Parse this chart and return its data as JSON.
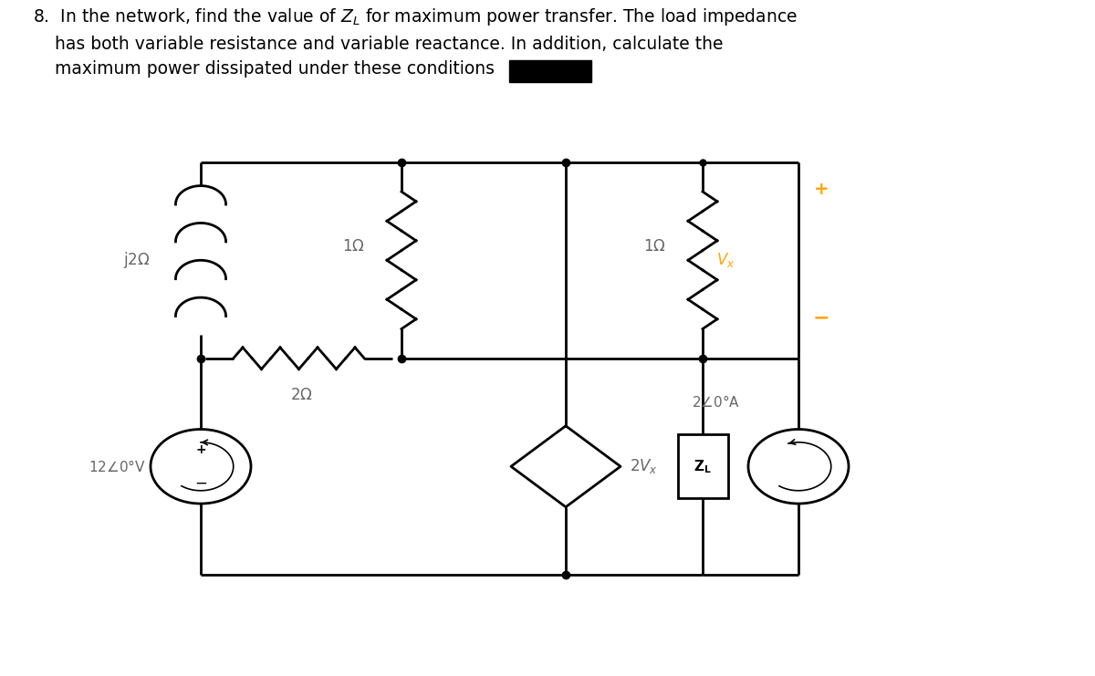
{
  "bg_color": "#ffffff",
  "line_color": "#000000",
  "label_color": "#666666",
  "vx_color": "#FFA500",
  "lw": 2.0,
  "ytop": 0.76,
  "ymid": 0.47,
  "ybot": 0.15,
  "xleft": 0.22,
  "xmidl": 0.44,
  "xmidr": 0.62,
  "xright": 0.77,
  "xfar": 0.875
}
